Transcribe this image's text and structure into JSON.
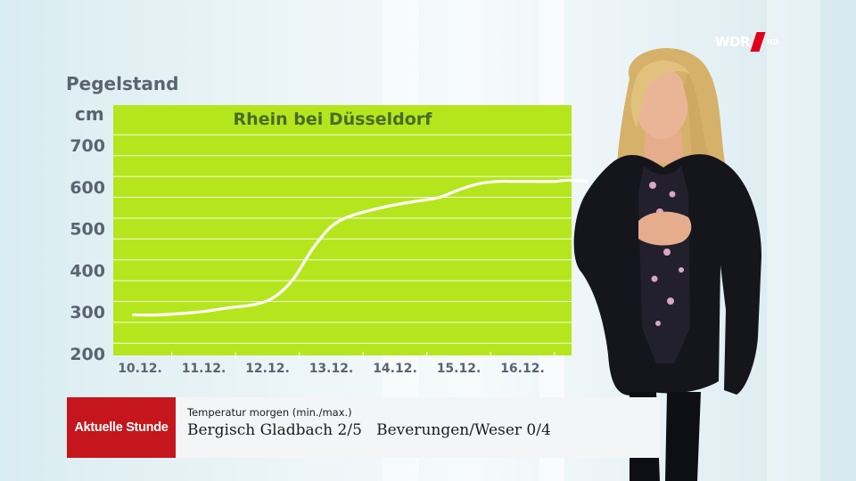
{
  "broadcast": {
    "logo": "WDR",
    "logo_suffix": "HD",
    "brand_color": "#e2001a"
  },
  "chart_data": {
    "type": "line",
    "title": "Rhein bei Düsseldorf",
    "ylabel": "Pegelstand",
    "yunit": "cm",
    "ylim": [
      200,
      700
    ],
    "yticks": [
      200,
      300,
      400,
      500,
      600,
      700
    ],
    "categories": [
      "10.12.",
      "11.12.",
      "12.12.",
      "13.12.",
      "14.12.",
      "15.12.",
      "16.12."
    ],
    "grid": true,
    "background_color": "#b5e61d",
    "line_color": "#ffffff",
    "text_color": "#5a6470",
    "series": [
      {
        "x": [
          -0.1,
          0.3,
          0.7,
          1.0,
          1.4,
          1.8,
          2.1,
          2.4,
          2.7,
          3.0,
          3.3,
          3.7,
          4.0,
          4.4,
          4.7,
          5.0,
          5.3,
          5.6,
          5.9,
          6.2,
          6.5,
          6.7,
          7.0
        ],
        "y": [
          293,
          293,
          297,
          301,
          310,
          318,
          335,
          378,
          450,
          505,
          530,
          547,
          557,
          567,
          575,
          593,
          607,
          613,
          613,
          613,
          613,
          616,
          614
        ]
      }
    ]
  },
  "lower_third": {
    "brand": "Aktuelle Stunde",
    "brand_color": "#c4161c",
    "caption": "Temperatur morgen (min./max.)",
    "text": "Bergisch Gladbach 2/5   Beverungen/Weser 0/4"
  }
}
